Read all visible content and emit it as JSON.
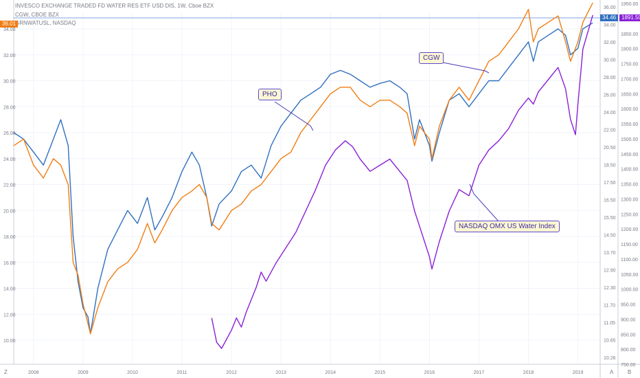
{
  "header": {
    "title": "INVESCO EXCHANGE TRADED FD WATER RES ETF USD DIS, 1W, Cboe BZX",
    "sub1": "CGW, CBOE BZX",
    "sub2": "GRNWATUSL, NASDAQ"
  },
  "colors": {
    "pho": "#2f6fbf",
    "cgw": "#f07d13",
    "index": "#8a1fd6",
    "grid": "#f0f3fa",
    "axis": "#c9ccd6",
    "text": "#787b86"
  },
  "price_tags": {
    "left": "36.01",
    "pho_right": "34.46",
    "index_right": "1891.50"
  },
  "annotations": {
    "pho": "PHO",
    "cgw": "CGW",
    "index": "NASDAQ OMX US Water Index"
  },
  "axis_buttons": {
    "left": "Z",
    "right_a": "A",
    "right_b": "B"
  },
  "chart_data": {
    "type": "line",
    "x_ticks": [
      "2008",
      "2009",
      "2010",
      "2011",
      "2012",
      "2013",
      "2014",
      "2015",
      "2016",
      "2017",
      "2018",
      "2019"
    ],
    "left_axis_ticks": [
      "10.00",
      "12.00",
      "14.00",
      "16.00",
      "18.00",
      "20.00",
      "22.00",
      "24.00",
      "26.00",
      "28.00",
      "30.00",
      "32.00",
      "34.00"
    ],
    "mid_axis_ticks": [
      "10.26",
      "10.65",
      "11.05",
      "11.70",
      "12.30",
      "12.90",
      "13.70",
      "14.50",
      "15.50",
      "16.50",
      "17.50",
      "18.50",
      "20.50",
      "22.00",
      "24.00",
      "26.00",
      "28.00",
      "30.00",
      "32.00",
      "34.00",
      "36.00"
    ],
    "right_axis_ticks": [
      "750.00",
      "800.00",
      "850.00",
      "900.00",
      "950.00",
      "1000.00",
      "1050.00",
      "1100.00",
      "1150.00",
      "1200.00",
      "1250.00",
      "1300.00",
      "1350.00",
      "1400.00",
      "1450.00",
      "1500.00",
      "1550.00",
      "1600.00",
      "1650.00",
      "1700.00",
      "1750.00",
      "1800.00",
      "1850.00",
      "1900.00",
      "1950.00"
    ],
    "series": [
      {
        "name": "PHO",
        "color": "#2f6fbf",
        "points": [
          [
            2007.6,
            26.0
          ],
          [
            2007.8,
            25.5
          ],
          [
            2008.0,
            24.5
          ],
          [
            2008.2,
            23.5
          ],
          [
            2008.4,
            25.5
          ],
          [
            2008.55,
            27.0
          ],
          [
            2008.7,
            25.0
          ],
          [
            2008.8,
            18.0
          ],
          [
            2008.9,
            14.5
          ],
          [
            2009.0,
            12.5
          ],
          [
            2009.1,
            11.8
          ],
          [
            2009.15,
            10.5
          ],
          [
            2009.3,
            14.0
          ],
          [
            2009.5,
            17.0
          ],
          [
            2009.7,
            18.5
          ],
          [
            2009.9,
            20.0
          ],
          [
            2010.1,
            19.0
          ],
          [
            2010.3,
            21.0
          ],
          [
            2010.45,
            18.5
          ],
          [
            2010.6,
            19.5
          ],
          [
            2010.8,
            21.0
          ],
          [
            2011.0,
            23.0
          ],
          [
            2011.2,
            24.5
          ],
          [
            2011.35,
            23.5
          ],
          [
            2011.5,
            21.0
          ],
          [
            2011.6,
            18.8
          ],
          [
            2011.75,
            20.5
          ],
          [
            2012.0,
            21.5
          ],
          [
            2012.2,
            23.0
          ],
          [
            2012.4,
            23.5
          ],
          [
            2012.6,
            22.5
          ],
          [
            2012.8,
            25.0
          ],
          [
            2013.0,
            26.5
          ],
          [
            2013.2,
            27.5
          ],
          [
            2013.4,
            28.5
          ],
          [
            2013.6,
            29.0
          ],
          [
            2013.8,
            29.5
          ],
          [
            2014.0,
            30.5
          ],
          [
            2014.2,
            30.8
          ],
          [
            2014.4,
            30.5
          ],
          [
            2014.6,
            30.0
          ],
          [
            2014.8,
            29.5
          ],
          [
            2015.0,
            29.8
          ],
          [
            2015.2,
            30.0
          ],
          [
            2015.4,
            29.5
          ],
          [
            2015.55,
            29.0
          ],
          [
            2015.7,
            25.5
          ],
          [
            2015.8,
            27.0
          ],
          [
            2016.0,
            25.0
          ],
          [
            2016.05,
            23.8
          ],
          [
            2016.2,
            26.0
          ],
          [
            2016.4,
            28.5
          ],
          [
            2016.6,
            29.0
          ],
          [
            2016.8,
            28.0
          ],
          [
            2017.0,
            29.0
          ],
          [
            2017.2,
            30.0
          ],
          [
            2017.4,
            30.0
          ],
          [
            2017.6,
            31.0
          ],
          [
            2017.8,
            32.0
          ],
          [
            2018.0,
            33.0
          ],
          [
            2018.1,
            31.5
          ],
          [
            2018.2,
            33.0
          ],
          [
            2018.4,
            33.5
          ],
          [
            2018.6,
            34.0
          ],
          [
            2018.75,
            33.5
          ],
          [
            2018.85,
            32.0
          ],
          [
            2019.0,
            32.5
          ],
          [
            2019.1,
            34.0
          ],
          [
            2019.3,
            34.46
          ]
        ]
      },
      {
        "name": "CGW",
        "color": "#f07d13",
        "points": [
          [
            2007.6,
            25.0
          ],
          [
            2007.8,
            25.5
          ],
          [
            2008.0,
            23.5
          ],
          [
            2008.2,
            22.5
          ],
          [
            2008.4,
            24.0
          ],
          [
            2008.55,
            23.5
          ],
          [
            2008.7,
            22.0
          ],
          [
            2008.8,
            16.0
          ],
          [
            2008.9,
            15.0
          ],
          [
            2009.0,
            12.8
          ],
          [
            2009.15,
            10.5
          ],
          [
            2009.3,
            12.5
          ],
          [
            2009.5,
            14.5
          ],
          [
            2009.7,
            15.5
          ],
          [
            2009.9,
            16.0
          ],
          [
            2010.1,
            17.0
          ],
          [
            2010.3,
            19.0
          ],
          [
            2010.45,
            17.5
          ],
          [
            2010.6,
            18.5
          ],
          [
            2010.8,
            20.0
          ],
          [
            2011.0,
            21.0
          ],
          [
            2011.2,
            21.5
          ],
          [
            2011.35,
            22.0
          ],
          [
            2011.5,
            21.0
          ],
          [
            2011.6,
            19.0
          ],
          [
            2011.75,
            18.5
          ],
          [
            2012.0,
            20.0
          ],
          [
            2012.2,
            20.5
          ],
          [
            2012.4,
            21.5
          ],
          [
            2012.6,
            22.0
          ],
          [
            2012.8,
            23.0
          ],
          [
            2013.0,
            24.0
          ],
          [
            2013.2,
            24.5
          ],
          [
            2013.4,
            26.0
          ],
          [
            2013.6,
            27.0
          ],
          [
            2013.8,
            28.0
          ],
          [
            2014.0,
            29.0
          ],
          [
            2014.2,
            29.5
          ],
          [
            2014.4,
            29.5
          ],
          [
            2014.6,
            28.5
          ],
          [
            2014.8,
            28.0
          ],
          [
            2015.0,
            28.5
          ],
          [
            2015.2,
            28.5
          ],
          [
            2015.4,
            28.0
          ],
          [
            2015.55,
            27.5
          ],
          [
            2015.7,
            25.0
          ],
          [
            2015.8,
            26.5
          ],
          [
            2016.0,
            25.5
          ],
          [
            2016.05,
            24.0
          ],
          [
            2016.2,
            26.5
          ],
          [
            2016.4,
            28.5
          ],
          [
            2016.6,
            29.5
          ],
          [
            2016.8,
            28.5
          ],
          [
            2017.0,
            30.0
          ],
          [
            2017.2,
            31.5
          ],
          [
            2017.4,
            32.0
          ],
          [
            2017.6,
            33.0
          ],
          [
            2017.8,
            34.0
          ],
          [
            2018.0,
            35.5
          ],
          [
            2018.1,
            33.0
          ],
          [
            2018.2,
            34.0
          ],
          [
            2018.4,
            34.5
          ],
          [
            2018.6,
            35.0
          ],
          [
            2018.75,
            33.0
          ],
          [
            2018.85,
            31.5
          ],
          [
            2019.0,
            33.0
          ],
          [
            2019.1,
            34.5
          ],
          [
            2019.3,
            36.01
          ]
        ]
      },
      {
        "name": "NASDAQ OMX US Water Index",
        "color": "#8a1fd6",
        "points": [
          [
            2011.6,
            900
          ],
          [
            2011.7,
            820
          ],
          [
            2011.8,
            800
          ],
          [
            2012.0,
            860
          ],
          [
            2012.1,
            900
          ],
          [
            2012.2,
            870
          ],
          [
            2012.3,
            920
          ],
          [
            2012.5,
            1000
          ],
          [
            2012.6,
            1050
          ],
          [
            2012.7,
            1020
          ],
          [
            2012.9,
            1080
          ],
          [
            2013.1,
            1130
          ],
          [
            2013.3,
            1180
          ],
          [
            2013.5,
            1250
          ],
          [
            2013.7,
            1320
          ],
          [
            2013.9,
            1400
          ],
          [
            2014.1,
            1450
          ],
          [
            2014.3,
            1480
          ],
          [
            2014.45,
            1460
          ],
          [
            2014.6,
            1420
          ],
          [
            2014.8,
            1380
          ],
          [
            2015.0,
            1400
          ],
          [
            2015.2,
            1420
          ],
          [
            2015.4,
            1380
          ],
          [
            2015.55,
            1350
          ],
          [
            2015.7,
            1250
          ],
          [
            2015.8,
            1200
          ],
          [
            2015.9,
            1150
          ],
          [
            2016.0,
            1100
          ],
          [
            2016.05,
            1060
          ],
          [
            2016.2,
            1150
          ],
          [
            2016.4,
            1250
          ],
          [
            2016.6,
            1320
          ],
          [
            2016.8,
            1300
          ],
          [
            2017.0,
            1400
          ],
          [
            2017.2,
            1450
          ],
          [
            2017.4,
            1480
          ],
          [
            2017.6,
            1520
          ],
          [
            2017.8,
            1580
          ],
          [
            2018.0,
            1620
          ],
          [
            2018.1,
            1600
          ],
          [
            2018.2,
            1640
          ],
          [
            2018.4,
            1680
          ],
          [
            2018.6,
            1720
          ],
          [
            2018.75,
            1650
          ],
          [
            2018.85,
            1550
          ],
          [
            2018.95,
            1500
          ],
          [
            2019.0,
            1600
          ],
          [
            2019.1,
            1780
          ],
          [
            2019.3,
            1891.5
          ]
        ]
      }
    ]
  }
}
